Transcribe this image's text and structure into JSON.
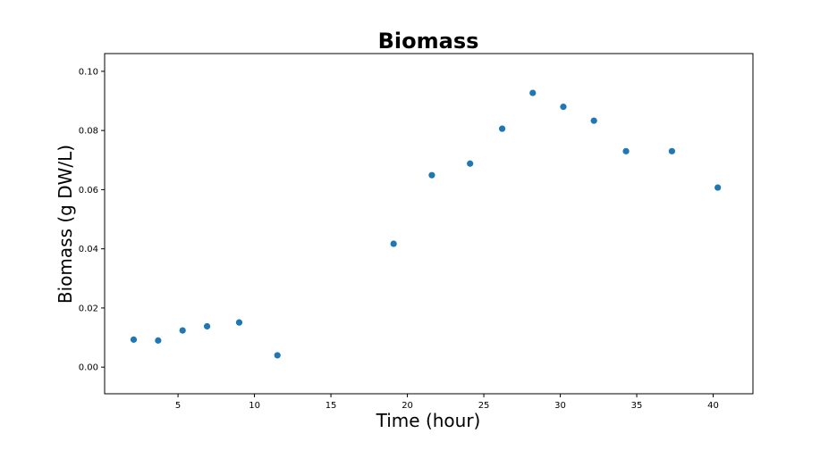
{
  "chart_data": {
    "type": "scatter",
    "title": "Biomass",
    "xlabel": "Time (hour)",
    "ylabel": "Biomass (g DW/L)",
    "xlim": [
      0.2,
      42.6
    ],
    "ylim": [
      -0.009,
      0.106
    ],
    "xticks": [
      5,
      10,
      15,
      20,
      25,
      30,
      35,
      40
    ],
    "xtick_labels": [
      "5",
      "10",
      "15",
      "20",
      "25",
      "30",
      "35",
      "40"
    ],
    "yticks": [
      0.0,
      0.02,
      0.04,
      0.06,
      0.08,
      0.1
    ],
    "ytick_labels": [
      "0.00",
      "0.02",
      "0.04",
      "0.06",
      "0.08",
      "0.10"
    ],
    "grid": false,
    "marker_color": "#1f77b4",
    "points": [
      {
        "x": 2.1,
        "y": 0.0093
      },
      {
        "x": 3.7,
        "y": 0.009
      },
      {
        "x": 5.3,
        "y": 0.0124
      },
      {
        "x": 6.9,
        "y": 0.0138
      },
      {
        "x": 9.0,
        "y": 0.0151
      },
      {
        "x": 11.5,
        "y": 0.004
      },
      {
        "x": 19.1,
        "y": 0.0417
      },
      {
        "x": 21.6,
        "y": 0.0649
      },
      {
        "x": 24.1,
        "y": 0.0688
      },
      {
        "x": 26.2,
        "y": 0.0806
      },
      {
        "x": 28.2,
        "y": 0.0927
      },
      {
        "x": 30.2,
        "y": 0.088
      },
      {
        "x": 32.2,
        "y": 0.0833
      },
      {
        "x": 34.3,
        "y": 0.073
      },
      {
        "x": 37.3,
        "y": 0.073
      },
      {
        "x": 40.3,
        "y": 0.0607
      }
    ]
  }
}
